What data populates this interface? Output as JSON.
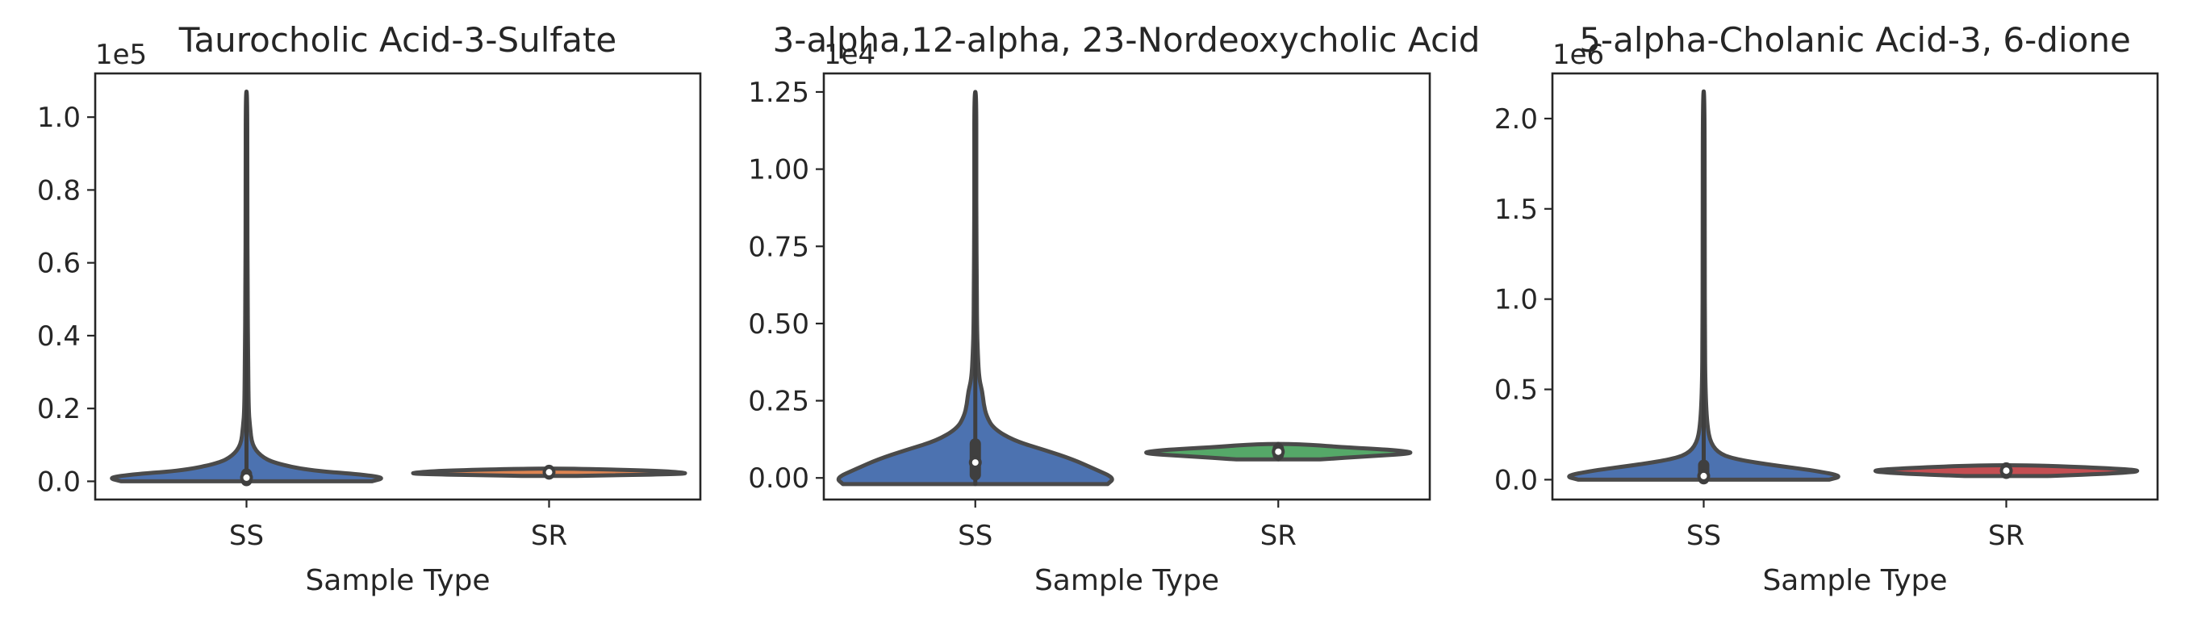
{
  "chart_data": [
    {
      "type": "violin",
      "title": "Taurocholic Acid-3-Sulfate",
      "xlabel": "Sample Type",
      "ylabel": "",
      "offset_text": "1e5",
      "categories": [
        "SS",
        "SR"
      ],
      "ylim": [
        -0.05,
        1.12
      ],
      "yticks": [
        0.0,
        0.2,
        0.4,
        0.6,
        0.8,
        1.0
      ],
      "ytick_labels": [
        "0.0",
        "0.2",
        "0.4",
        "0.6",
        "0.8",
        "1.0"
      ],
      "violins": [
        {
          "category": "SS",
          "color": "#4c72b0",
          "min": 0.0,
          "max": 1.07,
          "q1": 0.002,
          "median": 0.01,
          "q3": 0.02,
          "profile": [
            [
              0.0,
              0.9
            ],
            [
              0.01,
              1.0
            ],
            [
              0.02,
              0.8
            ],
            [
              0.03,
              0.45
            ],
            [
              0.05,
              0.2
            ],
            [
              0.07,
              0.1
            ],
            [
              0.1,
              0.04
            ],
            [
              0.15,
              0.025
            ],
            [
              0.2,
              0.015
            ],
            [
              0.35,
              0.012
            ],
            [
              0.5,
              0.008
            ],
            [
              0.8,
              0.006
            ],
            [
              1.07,
              0.006
            ]
          ]
        },
        {
          "category": "SR",
          "color": "#dd8452",
          "min": 0.015,
          "max": 0.035,
          "q1": 0.02,
          "median": 0.025,
          "q3": 0.03,
          "profile": [
            [
              0.015,
              0.2
            ],
            [
              0.02,
              1.0
            ],
            [
              0.025,
              0.95
            ],
            [
              0.03,
              0.7
            ],
            [
              0.035,
              0.15
            ]
          ]
        }
      ]
    },
    {
      "type": "violin",
      "title": "3-alpha,12-alpha, 23-Nordeoxycholic Acid",
      "xlabel": "Sample Type",
      "ylabel": "",
      "offset_text": "1e4",
      "categories": [
        "SS",
        "SR"
      ],
      "ylim": [
        -0.07,
        1.31
      ],
      "yticks": [
        0.0,
        0.25,
        0.5,
        0.75,
        1.0,
        1.25
      ],
      "ytick_labels": [
        "0.00",
        "0.25",
        "0.50",
        "0.75",
        "1.00",
        "1.25"
      ],
      "violins": [
        {
          "category": "SS",
          "color": "#4c72b0",
          "min": -0.02,
          "max": 1.25,
          "q1": 0.01,
          "median": 0.05,
          "q3": 0.11,
          "profile": [
            [
              -0.02,
              0.95
            ],
            [
              0.0,
              1.0
            ],
            [
              0.03,
              0.85
            ],
            [
              0.06,
              0.7
            ],
            [
              0.09,
              0.5
            ],
            [
              0.12,
              0.28
            ],
            [
              0.16,
              0.13
            ],
            [
              0.2,
              0.08
            ],
            [
              0.24,
              0.06
            ],
            [
              0.28,
              0.05
            ],
            [
              0.32,
              0.028
            ],
            [
              0.4,
              0.018
            ],
            [
              0.5,
              0.012
            ],
            [
              0.65,
              0.01
            ],
            [
              0.8,
              0.008
            ],
            [
              1.0,
              0.007
            ],
            [
              1.25,
              0.007
            ]
          ]
        },
        {
          "category": "SR",
          "color": "#55a868",
          "min": 0.06,
          "max": 0.11,
          "q1": 0.075,
          "median": 0.085,
          "q3": 0.095,
          "profile": [
            [
              0.06,
              0.3
            ],
            [
              0.07,
              0.65
            ],
            [
              0.08,
              1.0
            ],
            [
              0.09,
              0.85
            ],
            [
              0.1,
              0.45
            ],
            [
              0.11,
              0.15
            ]
          ]
        }
      ]
    },
    {
      "type": "violin",
      "title": "5-alpha-Cholanic Acid-3, 6-dione",
      "xlabel": "Sample Type",
      "ylabel": "",
      "offset_text": "1e6",
      "categories": [
        "SS",
        "SR"
      ],
      "ylim": [
        -0.11,
        2.25
      ],
      "yticks": [
        0.0,
        0.5,
        1.0,
        1.5,
        2.0
      ],
      "ytick_labels": [
        "0.0",
        "0.5",
        "1.0",
        "1.5",
        "2.0"
      ],
      "violins": [
        {
          "category": "SS",
          "color": "#4c72b0",
          "min": 0.0,
          "max": 2.15,
          "q1": 0.005,
          "median": 0.02,
          "q3": 0.08,
          "profile": [
            [
              0.0,
              0.9
            ],
            [
              0.02,
              1.0
            ],
            [
              0.05,
              0.8
            ],
            [
              0.08,
              0.5
            ],
            [
              0.11,
              0.25
            ],
            [
              0.14,
              0.12
            ],
            [
              0.2,
              0.05
            ],
            [
              0.3,
              0.025
            ],
            [
              0.5,
              0.012
            ],
            [
              0.8,
              0.009
            ],
            [
              1.2,
              0.007
            ],
            [
              2.15,
              0.007
            ]
          ]
        },
        {
          "category": "SR",
          "color": "#c44e52",
          "min": 0.02,
          "max": 0.08,
          "q1": 0.035,
          "median": 0.05,
          "q3": 0.065,
          "profile": [
            [
              0.02,
              0.3
            ],
            [
              0.035,
              0.8
            ],
            [
              0.05,
              1.0
            ],
            [
              0.065,
              0.7
            ],
            [
              0.08,
              0.2
            ]
          ]
        }
      ]
    }
  ]
}
